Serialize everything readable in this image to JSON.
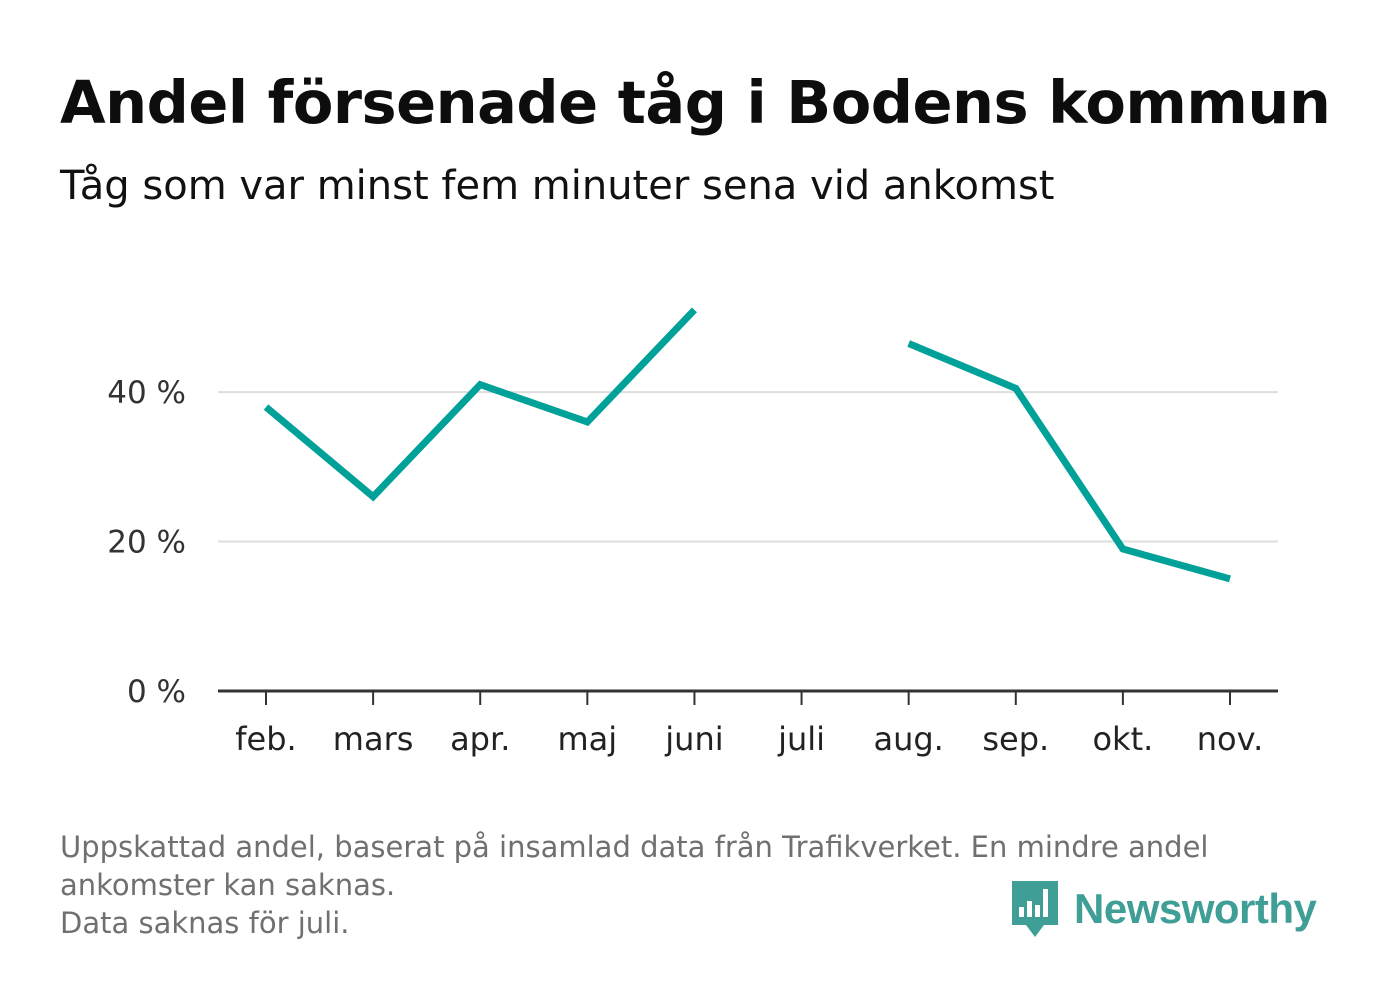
{
  "header": {
    "title": "Andel försenade tåg i Bodens kommun",
    "subtitle": "Tåg som var minst fem minuter sena vid ankomst"
  },
  "footer": {
    "lines": [
      "Uppskattad andel, baserat på insamlad data från Trafikverket. En mindre andel",
      "ankomster kan saknas.",
      "Data saknas för juli."
    ]
  },
  "brand": {
    "name": "Newsworthy",
    "color": "#3f9e96"
  },
  "chart_data": {
    "type": "line",
    "categories": [
      "feb.",
      "mars",
      "apr.",
      "maj",
      "juni",
      "juli",
      "aug.",
      "sep.",
      "okt.",
      "nov."
    ],
    "series": [
      {
        "values": [
          38,
          26,
          41,
          36,
          51,
          null,
          46.5,
          40.5,
          19,
          15
        ]
      }
    ],
    "yticks": [
      0,
      20,
      40
    ],
    "ytick_labels": [
      "0 %",
      "20 %",
      "40 %"
    ],
    "ylim": [
      0,
      55
    ],
    "grid": true,
    "line_color": "#00a198",
    "grid_color": "#dddddd",
    "axis_color": "#333333"
  }
}
